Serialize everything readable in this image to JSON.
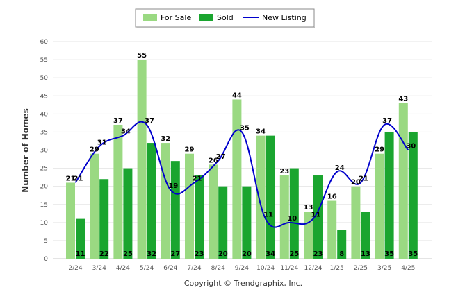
{
  "chart_data": {
    "type": "bar",
    "ylabel": "Number of Homes",
    "xlabel": "",
    "ylim": [
      0,
      60
    ],
    "yticks": [
      0,
      5,
      10,
      15,
      20,
      25,
      30,
      35,
      40,
      45,
      50,
      55,
      60
    ],
    "categories": [
      "2/24",
      "3/24",
      "4/24",
      "5/24",
      "6/24",
      "7/24",
      "8/24",
      "9/24",
      "10/24",
      "11/24",
      "12/24",
      "1/25",
      "2/25",
      "3/25",
      "4/25"
    ],
    "series": [
      {
        "name": "For Sale",
        "kind": "bar",
        "color": "#9ad982",
        "values": [
          21,
          29,
          37,
          55,
          32,
          29,
          26,
          44,
          34,
          23,
          13,
          16,
          20,
          29,
          43
        ]
      },
      {
        "name": "Sold",
        "kind": "bar",
        "color": "#1aa52f",
        "values": [
          11,
          22,
          25,
          32,
          27,
          23,
          20,
          20,
          34,
          25,
          23,
          8,
          13,
          35,
          35
        ]
      },
      {
        "name": "New Listing",
        "kind": "line",
        "color": "#0000cc",
        "values": [
          21,
          31,
          34,
          37,
          19,
          21,
          27,
          35,
          11,
          10,
          11,
          24,
          21,
          37,
          30
        ]
      }
    ],
    "legend_position": "top-center",
    "grid": true
  },
  "footer": {
    "copyright": "Copyright © Trendgraphix, Inc."
  }
}
